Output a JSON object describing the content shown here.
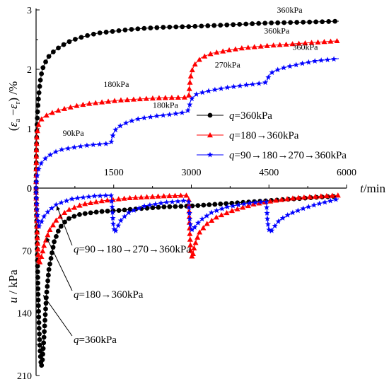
{
  "chart_data": {
    "type": "line",
    "x": {
      "label_var": "t",
      "label_unit": "/min",
      "ticks": [
        1500,
        3000,
        4500,
        6000
      ],
      "range": [
        0,
        6000
      ]
    },
    "upper_panel": {
      "ylabel": "(ε_a−ε_r) /%",
      "ylabel_parts": {
        "open": "(",
        "eps_a": "ε",
        "sub_a": "a",
        "minus": " −",
        "eps_r": "ε",
        "sub_r": "r",
        "close": ") /%"
      },
      "ylim": [
        0,
        3
      ],
      "yticks": [
        "0",
        "1",
        "2",
        "3"
      ],
      "series": [
        {
          "name_var": "q",
          "name_rest": "=360kPa",
          "color": "#000000",
          "marker": "circle",
          "points": [
            [
              0,
              0
            ],
            [
              5,
              0.6
            ],
            [
              15,
              1.0
            ],
            [
              30,
              1.3
            ],
            [
              50,
              1.55
            ],
            [
              80,
              1.8
            ],
            [
              120,
              2.0
            ],
            [
              170,
              2.1
            ],
            [
              230,
              2.2
            ],
            [
              300,
              2.27
            ],
            [
              400,
              2.34
            ],
            [
              500,
              2.4
            ],
            [
              650,
              2.47
            ],
            [
              800,
              2.52
            ],
            [
              1000,
              2.57
            ],
            [
              1200,
              2.61
            ],
            [
              1500,
              2.64
            ],
            [
              1800,
              2.67
            ],
            [
              2100,
              2.69
            ],
            [
              2500,
              2.71
            ],
            [
              3000,
              2.72
            ],
            [
              3500,
              2.74
            ],
            [
              4000,
              2.76
            ],
            [
              4500,
              2.78
            ],
            [
              5000,
              2.79
            ],
            [
              5500,
              2.8
            ],
            [
              5850,
              2.81
            ]
          ]
        },
        {
          "name_var": "q",
          "name_rest": "=180→360kPa",
          "color": "#ff0000",
          "marker": "triangle",
          "points": [
            [
              0,
              0
            ],
            [
              5,
              0.6
            ],
            [
              15,
              0.9
            ],
            [
              40,
              1.05
            ],
            [
              80,
              1.14
            ],
            [
              150,
              1.2
            ],
            [
              250,
              1.25
            ],
            [
              400,
              1.3
            ],
            [
              600,
              1.35
            ],
            [
              800,
              1.39
            ],
            [
              1000,
              1.42
            ],
            [
              1300,
              1.45
            ],
            [
              1600,
              1.48
            ],
            [
              2000,
              1.5
            ],
            [
              2400,
              1.52
            ],
            [
              2900,
              1.53
            ],
            [
              2950,
              1.53
            ],
            [
              2960,
              1.65
            ],
            [
              2980,
              1.85
            ],
            [
              3020,
              2.0
            ],
            [
              3080,
              2.1
            ],
            [
              3200,
              2.2
            ],
            [
              3400,
              2.27
            ],
            [
              3700,
              2.32
            ],
            [
              4000,
              2.36
            ],
            [
              4500,
              2.4
            ],
            [
              5000,
              2.43
            ],
            [
              5500,
              2.46
            ],
            [
              5850,
              2.48
            ]
          ]
        },
        {
          "name_var": "q",
          "name_rest": "=90→180→270→360kPa",
          "color": "#0000ff",
          "marker": "star",
          "points": [
            [
              0,
              0
            ],
            [
              10,
              0.15
            ],
            [
              40,
              0.3
            ],
            [
              100,
              0.42
            ],
            [
              200,
              0.52
            ],
            [
              350,
              0.6
            ],
            [
              500,
              0.65
            ],
            [
              700,
              0.68
            ],
            [
              900,
              0.71
            ],
            [
              1100,
              0.73
            ],
            [
              1400,
              0.75
            ],
            [
              1450,
              0.76
            ],
            [
              1470,
              0.85
            ],
            [
              1500,
              0.93
            ],
            [
              1550,
              1.0
            ],
            [
              1650,
              1.06
            ],
            [
              1800,
              1.12
            ],
            [
              2000,
              1.17
            ],
            [
              2300,
              1.21
            ],
            [
              2600,
              1.24
            ],
            [
              2900,
              1.28
            ],
            [
              2950,
              1.32
            ],
            [
              2980,
              1.45
            ],
            [
              3020,
              1.52
            ],
            [
              3100,
              1.58
            ],
            [
              3300,
              1.63
            ],
            [
              3600,
              1.68
            ],
            [
              4000,
              1.73
            ],
            [
              4300,
              1.76
            ],
            [
              4450,
              1.78
            ],
            [
              4480,
              1.85
            ],
            [
              4520,
              1.92
            ],
            [
              4600,
              1.97
            ],
            [
              4800,
              2.03
            ],
            [
              5100,
              2.09
            ],
            [
              5400,
              2.14
            ],
            [
              5850,
              2.18
            ]
          ]
        }
      ],
      "annotations": [
        {
          "text": "360kPa",
          "color": "black",
          "anchor": [
            4900,
            2.95
          ]
        },
        {
          "text": "360kPa",
          "color": "red",
          "anchor": [
            4650,
            2.6
          ]
        },
        {
          "text": "360kPa",
          "color": "blue",
          "anchor": [
            5200,
            2.33
          ]
        },
        {
          "text": "270kPa",
          "color": "blue",
          "anchor": [
            3700,
            2.03
          ]
        },
        {
          "text": "180kPa",
          "color": "red",
          "anchor": [
            1550,
            1.7
          ]
        },
        {
          "text": "180kPa",
          "color": "blue",
          "anchor": [
            2500,
            1.35
          ]
        },
        {
          "text": "90kPa",
          "color": "blue",
          "anchor": [
            720,
            0.88
          ]
        }
      ]
    },
    "lower_panel": {
      "ylabel_var": "u",
      "ylabel_rest": " / kPa",
      "ylim": [
        0,
        210
      ],
      "yticks": [
        "0",
        "70",
        "140",
        "210"
      ],
      "series": [
        {
          "name": "q=360kPa",
          "color": "#000000",
          "marker": "circle",
          "points": [
            [
              0,
              5
            ],
            [
              20,
              60
            ],
            [
              40,
              120
            ],
            [
              60,
              160
            ],
            [
              80,
              185
            ],
            [
              100,
              200
            ],
            [
              120,
              195
            ],
            [
              150,
              170
            ],
            [
              200,
              120
            ],
            [
              250,
              90
            ],
            [
              350,
              60
            ],
            [
              450,
              45
            ],
            [
              600,
              35
            ],
            [
              800,
              30
            ],
            [
              1000,
              28
            ],
            [
              1300,
              26
            ],
            [
              1600,
              25
            ],
            [
              2000,
              23
            ],
            [
              2500,
              21
            ],
            [
              3000,
              20
            ],
            [
              3500,
              18
            ],
            [
              4000,
              16
            ],
            [
              4500,
              14
            ],
            [
              5000,
              12
            ],
            [
              5500,
              10
            ],
            [
              5850,
              9
            ]
          ]
        },
        {
          "name": "q=180→360kPa",
          "color": "#ff0000",
          "marker": "triangle",
          "points": [
            [
              0,
              5
            ],
            [
              20,
              50
            ],
            [
              40,
              75
            ],
            [
              60,
              85
            ],
            [
              90,
              80
            ],
            [
              150,
              65
            ],
            [
              250,
              48
            ],
            [
              400,
              35
            ],
            [
              600,
              25
            ],
            [
              900,
              18
            ],
            [
              1300,
              14
            ],
            [
              1800,
              11
            ],
            [
              2400,
              9
            ],
            [
              2900,
              8
            ],
            [
              2950,
              10
            ],
            [
              2970,
              50
            ],
            [
              2990,
              72
            ],
            [
              3020,
              78
            ],
            [
              3060,
              65
            ],
            [
              3150,
              50
            ],
            [
              3300,
              40
            ],
            [
              3500,
              32
            ],
            [
              3800,
              25
            ],
            [
              4200,
              18
            ],
            [
              4600,
              14
            ],
            [
              5000,
              11
            ],
            [
              5500,
              9
            ],
            [
              5850,
              8
            ]
          ]
        },
        {
          "name": "q=90→180→270→360kPa",
          "color": "#0000ff",
          "marker": "star",
          "points": [
            [
              0,
              5
            ],
            [
              20,
              25
            ],
            [
              40,
              38
            ],
            [
              60,
              43
            ],
            [
              90,
              40
            ],
            [
              150,
              32
            ],
            [
              250,
              25
            ],
            [
              400,
              18
            ],
            [
              700,
              12
            ],
            [
              1100,
              9
            ],
            [
              1450,
              8
            ],
            [
              1470,
              20
            ],
            [
              1490,
              40
            ],
            [
              1520,
              50
            ],
            [
              1560,
              45
            ],
            [
              1650,
              35
            ],
            [
              1800,
              27
            ],
            [
              2100,
              20
            ],
            [
              2500,
              16
            ],
            [
              2900,
              14
            ],
            [
              2950,
              15
            ],
            [
              2970,
              35
            ],
            [
              2990,
              45
            ],
            [
              3030,
              48
            ],
            [
              3080,
              42
            ],
            [
              3200,
              35
            ],
            [
              3400,
              27
            ],
            [
              3700,
              21
            ],
            [
              4100,
              17
            ],
            [
              4450,
              15
            ],
            [
              4470,
              35
            ],
            [
              4490,
              45
            ],
            [
              4530,
              50
            ],
            [
              4580,
              45
            ],
            [
              4700,
              36
            ],
            [
              4900,
              29
            ],
            [
              5200,
              22
            ],
            [
              5500,
              17
            ],
            [
              5850,
              12
            ]
          ]
        }
      ],
      "labels": [
        {
          "var": "q",
          "rest": "=90→180→270→360kPa",
          "points_to": [
            400,
            20
          ]
        },
        {
          "var": "q",
          "rest": "=180→360kPa",
          "points_to": [
            200,
            55
          ]
        },
        {
          "var": "q",
          "rest": "=360kPa",
          "points_to": [
            140,
            120
          ]
        }
      ]
    }
  }
}
